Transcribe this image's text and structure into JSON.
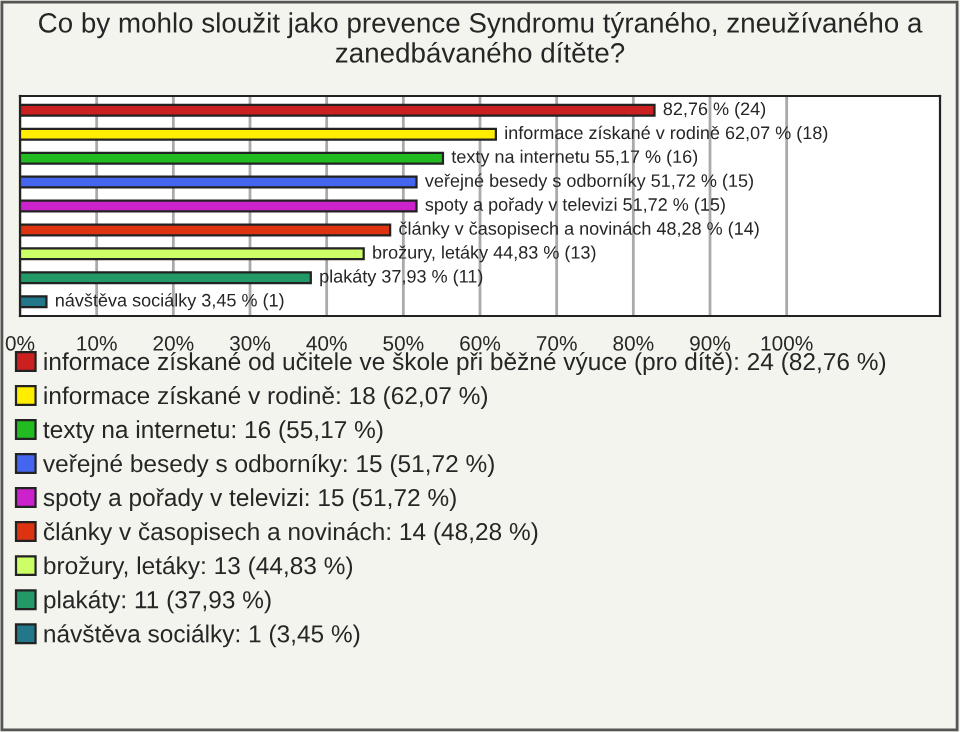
{
  "chart_data": {
    "type": "bar",
    "orientation": "horizontal",
    "title": "Co by mohlo sloužit jako prevence Syndromu týraného, zneužívaného a zanedbávaného dítěte?",
    "categories": [
      null,
      null,
      null,
      null,
      null,
      null,
      null,
      null,
      null
    ],
    "series": [
      {
        "name": "informace získané od učitele ve škole při běžné výuce (pro dítě): 24 (82,76 %)",
        "color": "#cc1f1f",
        "values": [
          82.76,
          null,
          null,
          null,
          null,
          null,
          null,
          null,
          null
        ],
        "value_labels": [
          "82,76 % (24)",
          null,
          null,
          null,
          null,
          null,
          null,
          null,
          null
        ]
      },
      {
        "name": "informace získané v rodině: 18 (62,07 %)",
        "color": "#ffee00",
        "values": [
          null,
          62.07,
          null,
          null,
          null,
          null,
          null,
          null,
          null
        ],
        "value_labels": [
          null,
          "informace získané v rodině 62,07 % (18)",
          null,
          null,
          null,
          null,
          null,
          null,
          null
        ]
      },
      {
        "name": "texty na internetu: 16 (55,17 %)",
        "color": "#22bb22",
        "values": [
          null,
          null,
          55.17,
          null,
          null,
          null,
          null,
          null,
          null
        ],
        "value_labels": [
          null,
          null,
          "texty na internetu 55,17 % (16)",
          null,
          null,
          null,
          null,
          null,
          null
        ]
      },
      {
        "name": "veřejné besedy s odborníky: 15 (51,72 %)",
        "color": "#4466ee",
        "values": [
          null,
          null,
          null,
          51.72,
          null,
          null,
          null,
          null,
          null
        ],
        "value_labels": [
          null,
          null,
          null,
          "veřejné besedy s odborníky 51,72 % (15)",
          null,
          null,
          null,
          null,
          null
        ]
      },
      {
        "name": "spoty a pořady v televizi: 15 (51,72 %)",
        "color": "#cc22cc",
        "values": [
          null,
          null,
          null,
          null,
          51.72,
          null,
          null,
          null,
          null
        ],
        "value_labels": [
          null,
          null,
          null,
          null,
          "spoty a pořady v televizi 51,72 % (15)",
          null,
          null,
          null,
          null
        ]
      },
      {
        "name": "články v časopisech a novinách: 14 (48,28 %)",
        "color": "#dd3311",
        "values": [
          null,
          null,
          null,
          null,
          null,
          48.28,
          null,
          null,
          null
        ],
        "value_labels": [
          null,
          null,
          null,
          null,
          null,
          "články v časopisech a novinách 48,28 % (14)",
          null,
          null,
          null
        ]
      },
      {
        "name": "brožury, letáky: 13 (44,83 %)",
        "color": "#ccff66",
        "values": [
          null,
          null,
          null,
          null,
          null,
          null,
          44.83,
          null,
          null
        ],
        "value_labels": [
          null,
          null,
          null,
          null,
          null,
          null,
          "brožury, letáky 44,83 % (13)",
          null,
          null
        ]
      },
      {
        "name": "plakáty: 11 (37,93 %)",
        "color": "#229966",
        "values": [
          null,
          null,
          null,
          null,
          null,
          null,
          null,
          37.93,
          null
        ],
        "value_labels": [
          null,
          null,
          null,
          null,
          null,
          null,
          null,
          "plakáty 37,93 % (11)",
          null
        ]
      },
      {
        "name": "návštěva sociálky: 1 (3,45 %)",
        "color": "#227788",
        "values": [
          null,
          null,
          null,
          null,
          null,
          null,
          null,
          null,
          3.45
        ],
        "value_labels": [
          null,
          null,
          null,
          null,
          null,
          null,
          null,
          null,
          "návštěva sociálky 3,45 % (1)"
        ]
      }
    ],
    "xlim": [
      0,
      120
    ],
    "xticks": [
      {
        "value": 0,
        "label": "0%"
      },
      {
        "value": 10,
        "label": "10%"
      },
      {
        "value": 20,
        "label": "20%"
      },
      {
        "value": 30,
        "label": "30%"
      },
      {
        "value": 40,
        "label": "40%"
      },
      {
        "value": 50,
        "label": "50%"
      },
      {
        "value": 60,
        "label": "60%"
      },
      {
        "value": 70,
        "label": "70%"
      },
      {
        "value": 80,
        "label": "80%"
      },
      {
        "value": 90,
        "label": "90%"
      },
      {
        "value": 100,
        "label": "100%"
      }
    ],
    "grid": "x",
    "legend": "bottom",
    "tick_labels": "x"
  }
}
